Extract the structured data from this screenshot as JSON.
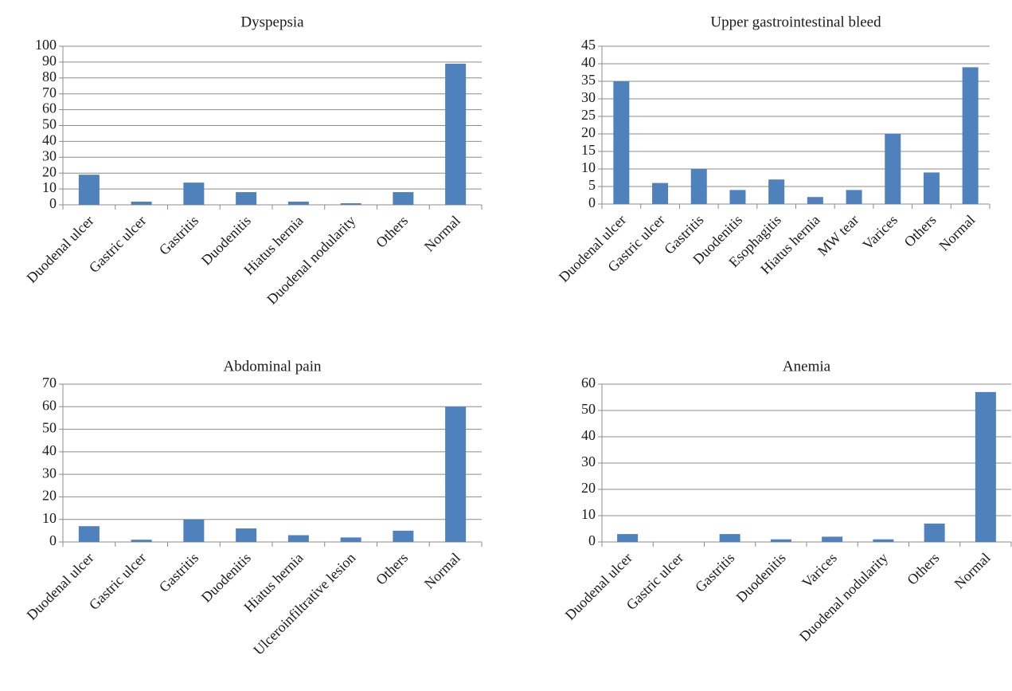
{
  "style": {
    "bar_color": "#4f81bd",
    "grid_color": "#8c8c8c",
    "background": "#ffffff"
  },
  "chart_data": [
    {
      "type": "bar",
      "title": "Dyspepsia",
      "categories": [
        "Duodenal ulcer",
        "Gastric ulcer",
        "Gastritis",
        "Duodenitis",
        "Hiatus hernia",
        "Duodenal nodularity",
        "Others",
        "Normal"
      ],
      "values": [
        19,
        2,
        14,
        8,
        2,
        1,
        8,
        89
      ],
      "ylim": [
        0,
        100
      ],
      "yticks": [
        0,
        10,
        20,
        30,
        40,
        50,
        60,
        70,
        80,
        90,
        100
      ],
      "grid": true,
      "legend": "none"
    },
    {
      "type": "bar",
      "title": "Upper gastrointestinal bleed",
      "categories": [
        "Duodenal ulcer",
        "Gastric ulcer",
        "Gastritis",
        "Duodenitis",
        "Esophagitis",
        "Hiatus hernia",
        "MW tear",
        "Varices",
        "Others",
        "Normal"
      ],
      "values": [
        35,
        6,
        10,
        4,
        7,
        2,
        4,
        20,
        9,
        39
      ],
      "ylim": [
        0,
        45
      ],
      "yticks": [
        0,
        5,
        10,
        15,
        20,
        25,
        30,
        35,
        40,
        45
      ],
      "grid": true,
      "legend": "none"
    },
    {
      "type": "bar",
      "title": "Abdominal pain",
      "categories": [
        "Duodenal ulcer",
        "Gastric ulcer",
        "Gastritis",
        "Duodenitis",
        "Hiatus hernia",
        "Ulceroinfiltrative lesion",
        "Others",
        "Normal"
      ],
      "values": [
        7,
        1,
        10,
        6,
        3,
        2,
        5,
        60
      ],
      "ylim": [
        0,
        70
      ],
      "yticks": [
        0,
        10,
        20,
        30,
        40,
        50,
        60,
        70
      ],
      "grid": true,
      "legend": "none"
    },
    {
      "type": "bar",
      "title": "Anemia",
      "categories": [
        "Duodenal ulcer",
        "Gastric ulcer",
        "Gastritis",
        "Duodenitis",
        "Varices",
        "Duodenal nodularity",
        "Others",
        "Normal"
      ],
      "values": [
        3,
        0,
        3,
        1,
        2,
        1,
        7,
        57
      ],
      "ylim": [
        0,
        60
      ],
      "yticks": [
        0,
        10,
        20,
        30,
        40,
        50,
        60
      ],
      "grid": true,
      "legend": "none"
    }
  ]
}
